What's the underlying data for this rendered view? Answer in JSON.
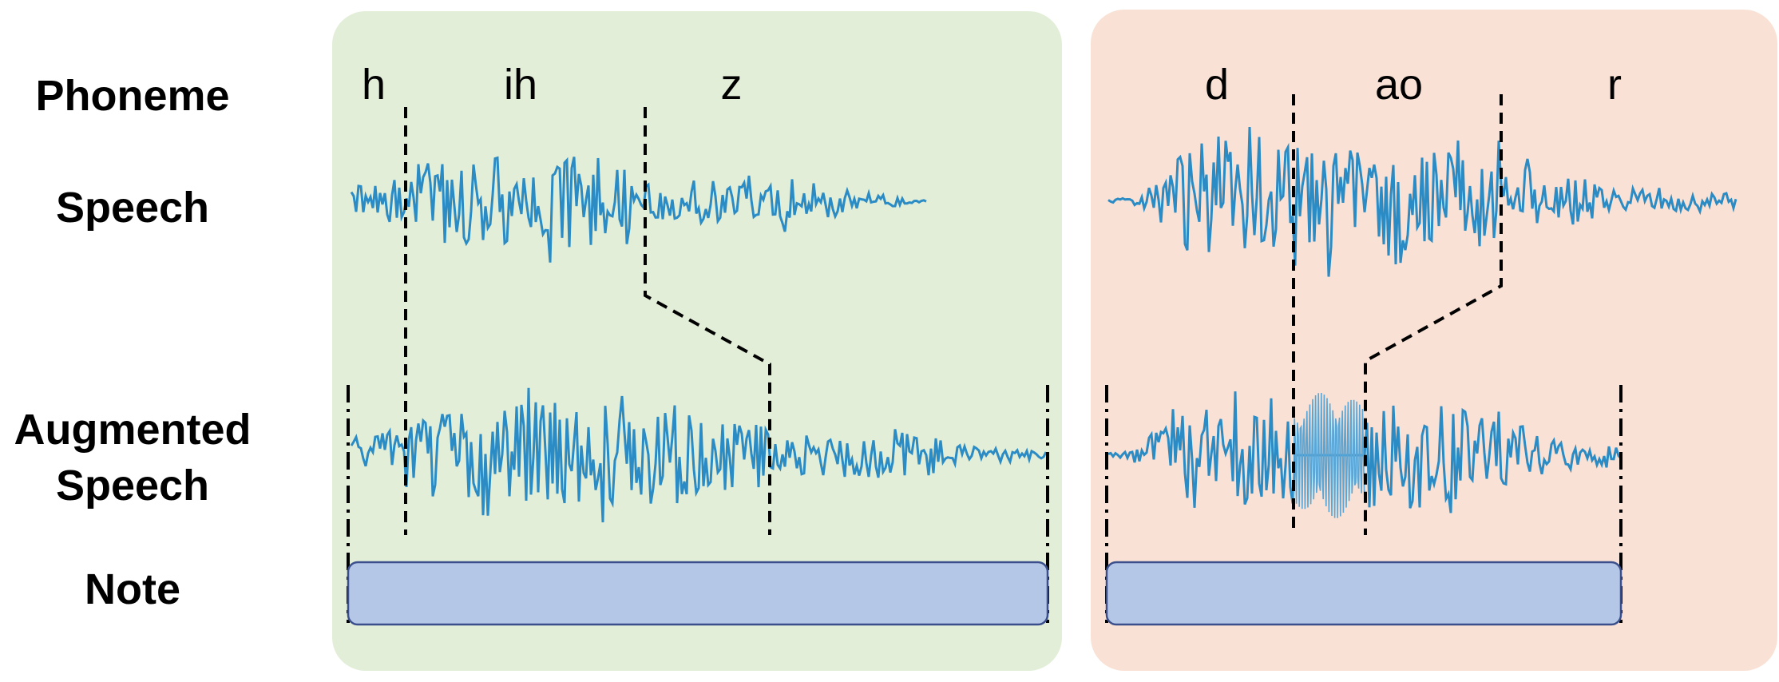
{
  "row_labels": {
    "phoneme": "Phoneme",
    "speech": "Speech",
    "augmented_line1": "Augmented",
    "augmented_line2": "Speech",
    "note": "Note"
  },
  "panels": [
    {
      "name": "left",
      "background": "#e2eed8",
      "phonemes": [
        "h",
        "ih",
        "z"
      ]
    },
    {
      "name": "right",
      "background": "#f9e2d5",
      "phonemes": [
        "d",
        "ao",
        "r"
      ]
    }
  ],
  "colors": {
    "waveform": "#2b8bc4",
    "note_fill": "#b4c7e7",
    "note_stroke": "#3a4f8c",
    "guide_line": "#000000"
  }
}
